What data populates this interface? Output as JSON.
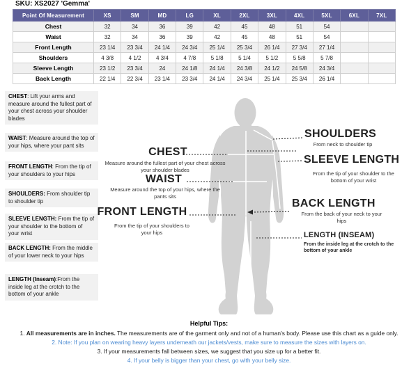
{
  "title": "SKU: XS2027 'Gemma'",
  "colors": {
    "header_purple": "#5e5f99",
    "tip_blue": "#4a8ad2",
    "silhouette_gray": "#d2d2d2",
    "row_stripe_gray": "#f0f0f0"
  },
  "size_chart": {
    "columns": [
      "Point Of Measurement",
      "XS",
      "SM",
      "MD",
      "LG",
      "XL",
      "2XL",
      "3XL",
      "4XL",
      "5XL",
      "6XL",
      "7XL"
    ],
    "rows": [
      {
        "label": "Chest",
        "values": [
          "32",
          "34",
          "36",
          "39",
          "42",
          "45",
          "48",
          "51",
          "54",
          "",
          ""
        ]
      },
      {
        "label": "Waist",
        "values": [
          "32",
          "34",
          "36",
          "39",
          "42",
          "45",
          "48",
          "51",
          "54",
          "",
          ""
        ]
      },
      {
        "label": "Front Length",
        "values": [
          "23 1/4",
          "23 3/4",
          "24 1/4",
          "24 3/4",
          "25 1/4",
          "25 3/4",
          "26 1/4",
          "27 3/4",
          "27 1/4",
          "",
          ""
        ]
      },
      {
        "label": "Shoulders",
        "values": [
          "4 3/8",
          "4 1/2",
          "4 3/4",
          "4 7/8",
          "5 1/8",
          "5 1/4",
          "5 1/2",
          "5 5/8",
          "5 7/8",
          "",
          ""
        ]
      },
      {
        "label": "Sleeve Length",
        "values": [
          "23 1/2",
          "23 3/4",
          "24",
          "24 1/8",
          "24 1/4",
          "24 3/8",
          "24 1/2",
          "24 5/8",
          "24 3/4",
          "",
          ""
        ]
      },
      {
        "label": "Back Length",
        "values": [
          "22 1/4",
          "22 3/4",
          "23 1/4",
          "23 3/4",
          "24 1/4",
          "24 3/4",
          "25 1/4",
          "25 3/4",
          "26 1/4",
          "",
          ""
        ]
      }
    ]
  },
  "definitions": [
    {
      "term": "CHEST",
      "text": ": Lift your arms  and measure around the fullest part of your chest across your shoulder blades"
    },
    {
      "term": "WAIST",
      "text": ":  Measure around the top of your hips, where your pant sits"
    },
    {
      "term": "FRONT LENGTH",
      "text": ": From the tip of your shoulders to your hips"
    },
    {
      "term": "SHOULDERS:",
      "text": " From shoulder tip to shoulder tip"
    },
    {
      "term": "SLEEVE LENGTH:",
      "text": " From the tip of your shoulder to the bottom of your wrist"
    },
    {
      "term": "BACK LENGTH:",
      "text": " From the middle of your lower neck to your hips"
    },
    {
      "term": "LENGTH (Inseam)",
      "text": ":From the inside leg at the crotch to the bottom of your ankle"
    }
  ],
  "diagram": {
    "left_callouts": [
      {
        "title": "CHEST",
        "sub": "Measure around the fullest part of your chest across your shoulder blades"
      },
      {
        "title": "WAIST",
        "sub": "Measure around the top of your hips, where the pants sits"
      },
      {
        "title": "FRONT LENGTH",
        "sub": "From the tip of your shoulders to your hips"
      }
    ],
    "right_callouts": [
      {
        "title": "SHOULDERS",
        "sub": "From neck to shoulder tip"
      },
      {
        "title": "SLEEVE LENGTH",
        "sub": "From the tip of your shoulder to the bottom of your wrist"
      },
      {
        "title": "BACK LENGTH",
        "sub": "From the back of your neck to your hips"
      },
      {
        "title": "LENGTH (INSEAM)",
        "sub": "From the inside leg at the crotch to the bottom of your ankle"
      }
    ]
  },
  "tips": {
    "heading": "Helpful Tips:",
    "line1_num": "1. ",
    "line1_bold": "All measurements are in inches.",
    "line1_rest": " The measurements are of the garment only and not of a human's body. Please use this chart as a guide only.",
    "line2": "2. Note: If you plan on wearing heavy layers underneath our jackets/vests, make sure to measure the sizes with layers on.",
    "line3": "3. If your measurements fall between sizes, we suggest that you size up for a better fit.",
    "line4": "4. If your belly is bigger than your chest, go with your belly size."
  }
}
